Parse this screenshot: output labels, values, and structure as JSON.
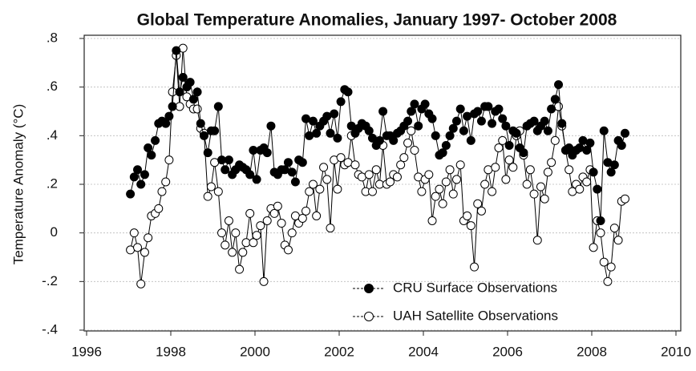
{
  "chart_data": {
    "type": "line",
    "title": "Global Temperature Anomalies, January 1997- October 2008",
    "y_label": "Temperature Anomaly (°C)",
    "x": [
      1997.04,
      1997.13,
      1997.21,
      1997.29,
      1997.38,
      1997.46,
      1997.54,
      1997.63,
      1997.71,
      1997.79,
      1997.88,
      1997.96,
      1998.04,
      1998.13,
      1998.21,
      1998.29,
      1998.38,
      1998.46,
      1998.54,
      1998.63,
      1998.71,
      1998.79,
      1998.88,
      1998.96,
      1999.04,
      1999.13,
      1999.21,
      1999.29,
      1999.38,
      1999.46,
      1999.54,
      1999.63,
      1999.71,
      1999.79,
      1999.88,
      1999.96,
      2000.04,
      2000.13,
      2000.21,
      2000.29,
      2000.38,
      2000.46,
      2000.54,
      2000.63,
      2000.71,
      2000.79,
      2000.88,
      2000.96,
      2001.04,
      2001.13,
      2001.21,
      2001.29,
      2001.38,
      2001.46,
      2001.54,
      2001.63,
      2001.71,
      2001.79,
      2001.88,
      2001.96,
      2002.04,
      2002.13,
      2002.21,
      2002.29,
      2002.38,
      2002.46,
      2002.54,
      2002.63,
      2002.71,
      2002.79,
      2002.88,
      2002.96,
      2003.04,
      2003.13,
      2003.21,
      2003.29,
      2003.38,
      2003.46,
      2003.54,
      2003.63,
      2003.71,
      2003.79,
      2003.88,
      2003.96,
      2004.04,
      2004.13,
      2004.21,
      2004.29,
      2004.38,
      2004.46,
      2004.54,
      2004.63,
      2004.71,
      2004.79,
      2004.88,
      2004.96,
      2005.04,
      2005.13,
      2005.21,
      2005.29,
      2005.38,
      2005.46,
      2005.54,
      2005.63,
      2005.71,
      2005.79,
      2005.88,
      2005.96,
      2006.04,
      2006.13,
      2006.21,
      2006.29,
      2006.38,
      2006.46,
      2006.54,
      2006.63,
      2006.71,
      2006.79,
      2006.88,
      2006.96,
      2007.04,
      2007.13,
      2007.21,
      2007.29,
      2007.38,
      2007.46,
      2007.54,
      2007.63,
      2007.71,
      2007.79,
      2007.88,
      2007.96,
      2008.04,
      2008.13,
      2008.21,
      2008.29,
      2008.38,
      2008.46,
      2008.54,
      2008.63,
      2008.71,
      2008.79
    ],
    "series": [
      {
        "name": "CRU Surface Observations",
        "color": "#000000",
        "marker": "filled",
        "values": [
          0.16,
          0.23,
          0.26,
          0.2,
          0.24,
          0.35,
          0.32,
          0.38,
          0.45,
          0.46,
          0.45,
          0.48,
          0.52,
          0.75,
          0.58,
          0.64,
          0.6,
          0.62,
          0.55,
          0.58,
          0.45,
          0.4,
          0.33,
          0.42,
          0.42,
          0.52,
          0.3,
          0.26,
          0.3,
          0.24,
          0.26,
          0.28,
          0.27,
          0.26,
          0.24,
          0.34,
          0.22,
          0.34,
          0.35,
          0.33,
          0.44,
          0.25,
          0.24,
          0.26,
          0.26,
          0.29,
          0.25,
          0.21,
          0.3,
          0.29,
          0.47,
          0.4,
          0.46,
          0.41,
          0.44,
          0.46,
          0.48,
          0.41,
          0.49,
          0.39,
          0.54,
          0.59,
          0.58,
          0.44,
          0.41,
          0.43,
          0.45,
          0.44,
          0.42,
          0.39,
          0.36,
          0.38,
          0.5,
          0.4,
          0.4,
          0.38,
          0.41,
          0.42,
          0.44,
          0.46,
          0.5,
          0.53,
          0.44,
          0.51,
          0.53,
          0.49,
          0.47,
          0.4,
          0.32,
          0.33,
          0.36,
          0.4,
          0.43,
          0.46,
          0.51,
          0.42,
          0.48,
          0.38,
          0.49,
          0.5,
          0.46,
          0.52,
          0.52,
          0.45,
          0.5,
          0.51,
          0.47,
          0.44,
          0.36,
          0.42,
          0.41,
          0.35,
          0.33,
          0.44,
          0.45,
          0.46,
          0.42,
          0.44,
          0.46,
          0.42,
          0.51,
          0.55,
          0.61,
          0.45,
          0.34,
          0.35,
          0.32,
          0.34,
          0.35,
          0.38,
          0.34,
          0.37,
          0.25,
          0.18,
          0.05,
          0.42,
          0.29,
          0.25,
          0.28,
          0.38,
          0.36,
          0.41
        ]
      },
      {
        "name": "UAH Satellite Observations",
        "color": "#000000",
        "marker": "open",
        "values": [
          -0.07,
          0.0,
          -0.06,
          -0.21,
          -0.08,
          -0.02,
          0.07,
          0.08,
          0.1,
          0.17,
          0.21,
          0.3,
          0.58,
          0.73,
          0.52,
          0.76,
          0.56,
          0.53,
          0.51,
          0.51,
          0.43,
          0.41,
          0.15,
          0.19,
          0.29,
          0.17,
          0.0,
          -0.05,
          0.05,
          -0.08,
          0.0,
          -0.15,
          -0.08,
          -0.04,
          0.08,
          -0.04,
          -0.01,
          0.03,
          -0.2,
          0.05,
          0.1,
          0.08,
          0.11,
          0.04,
          -0.05,
          -0.07,
          0.0,
          0.07,
          0.04,
          0.06,
          0.09,
          0.17,
          0.2,
          0.07,
          0.18,
          0.27,
          0.22,
          0.02,
          0.3,
          0.18,
          0.31,
          0.28,
          0.29,
          0.4,
          0.28,
          0.24,
          0.23,
          0.17,
          0.24,
          0.17,
          0.26,
          0.2,
          0.36,
          0.2,
          0.21,
          0.24,
          0.23,
          0.28,
          0.31,
          0.37,
          0.42,
          0.34,
          0.23,
          0.17,
          0.22,
          0.24,
          0.05,
          0.15,
          0.18,
          0.12,
          0.21,
          0.26,
          0.16,
          0.22,
          0.28,
          0.05,
          0.07,
          0.03,
          -0.14,
          0.12,
          0.09,
          0.2,
          0.26,
          0.17,
          0.27,
          0.35,
          0.38,
          0.22,
          0.3,
          0.27,
          0.4,
          0.42,
          0.32,
          0.2,
          0.26,
          0.16,
          -0.03,
          0.19,
          0.14,
          0.25,
          0.29,
          0.38,
          0.52,
          0.44,
          0.34,
          0.26,
          0.17,
          0.2,
          0.18,
          0.23,
          0.21,
          0.26,
          -0.06,
          0.05,
          0.0,
          -0.12,
          -0.2,
          -0.14,
          0.02,
          -0.03,
          0.13,
          0.14
        ]
      }
    ],
    "xlim": [
      1996,
      2010
    ],
    "xticks": [
      1996,
      1998,
      2000,
      2002,
      2004,
      2006,
      2008,
      2010
    ],
    "ylim": [
      -0.4,
      0.8
    ],
    "yticks": [
      {
        "value": -0.4,
        "label": "-.4"
      },
      {
        "value": -0.2,
        "label": "-.2"
      },
      0,
      {
        "value": 0.2,
        "label": ".2"
      },
      {
        "value": 0.4,
        "label": ".4"
      },
      {
        "value": 0.6,
        "label": ".6"
      },
      {
        "value": 0.8,
        "label": ".8"
      }
    ],
    "grid": true,
    "legend": "lower right"
  }
}
